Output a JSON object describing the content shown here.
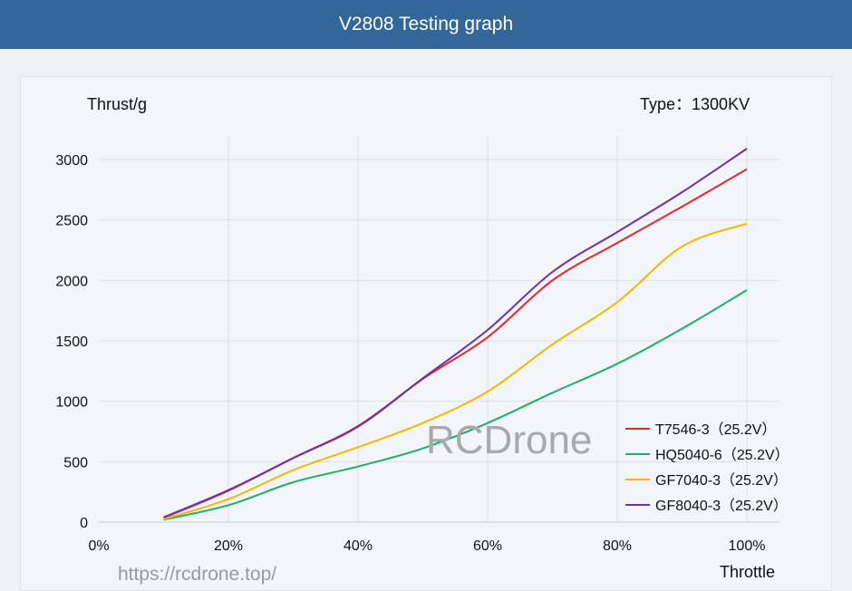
{
  "header": {
    "title": "V2808 Testing graph"
  },
  "chart_data": {
    "type": "line",
    "ylabel": "Thrust/g",
    "xlabel": "Throttle",
    "annotation": "Type：1300KV",
    "x": [
      10,
      20,
      30,
      40,
      50,
      60,
      70,
      80,
      90,
      100
    ],
    "xticks": [
      "0%",
      "20%",
      "40%",
      "60%",
      "80%",
      "100%"
    ],
    "xlim": [
      0,
      100
    ],
    "yticks": [
      "0",
      "500",
      "1000",
      "1500",
      "2000",
      "2500",
      "3000"
    ],
    "ylim": [
      0,
      3000
    ],
    "grid": true,
    "legend_position": "bottom-right",
    "series": [
      {
        "name": "T7546-3（25.2V）",
        "color": "#e8262a",
        "values": [
          35,
          260,
          530,
          795,
          1185,
          1530,
          2000,
          2310,
          2610,
          2920
        ]
      },
      {
        "name": "HQ5040-6（25.2V）",
        "color": "#1db064",
        "values": [
          20,
          140,
          330,
          460,
          610,
          820,
          1070,
          1310,
          1600,
          1920
        ]
      },
      {
        "name": "GF7040-3（25.2V）",
        "color": "#f5b800",
        "values": [
          25,
          190,
          430,
          620,
          820,
          1080,
          1470,
          1820,
          2280,
          2470
        ]
      },
      {
        "name": "GF8040-3（25.2V）",
        "color": "#7030a0",
        "values": [
          40,
          265,
          530,
          790,
          1190,
          1590,
          2070,
          2400,
          2730,
          3090
        ]
      }
    ]
  },
  "watermark": {
    "brand": "RCDrone",
    "url": "https://rcdrone.top/"
  }
}
